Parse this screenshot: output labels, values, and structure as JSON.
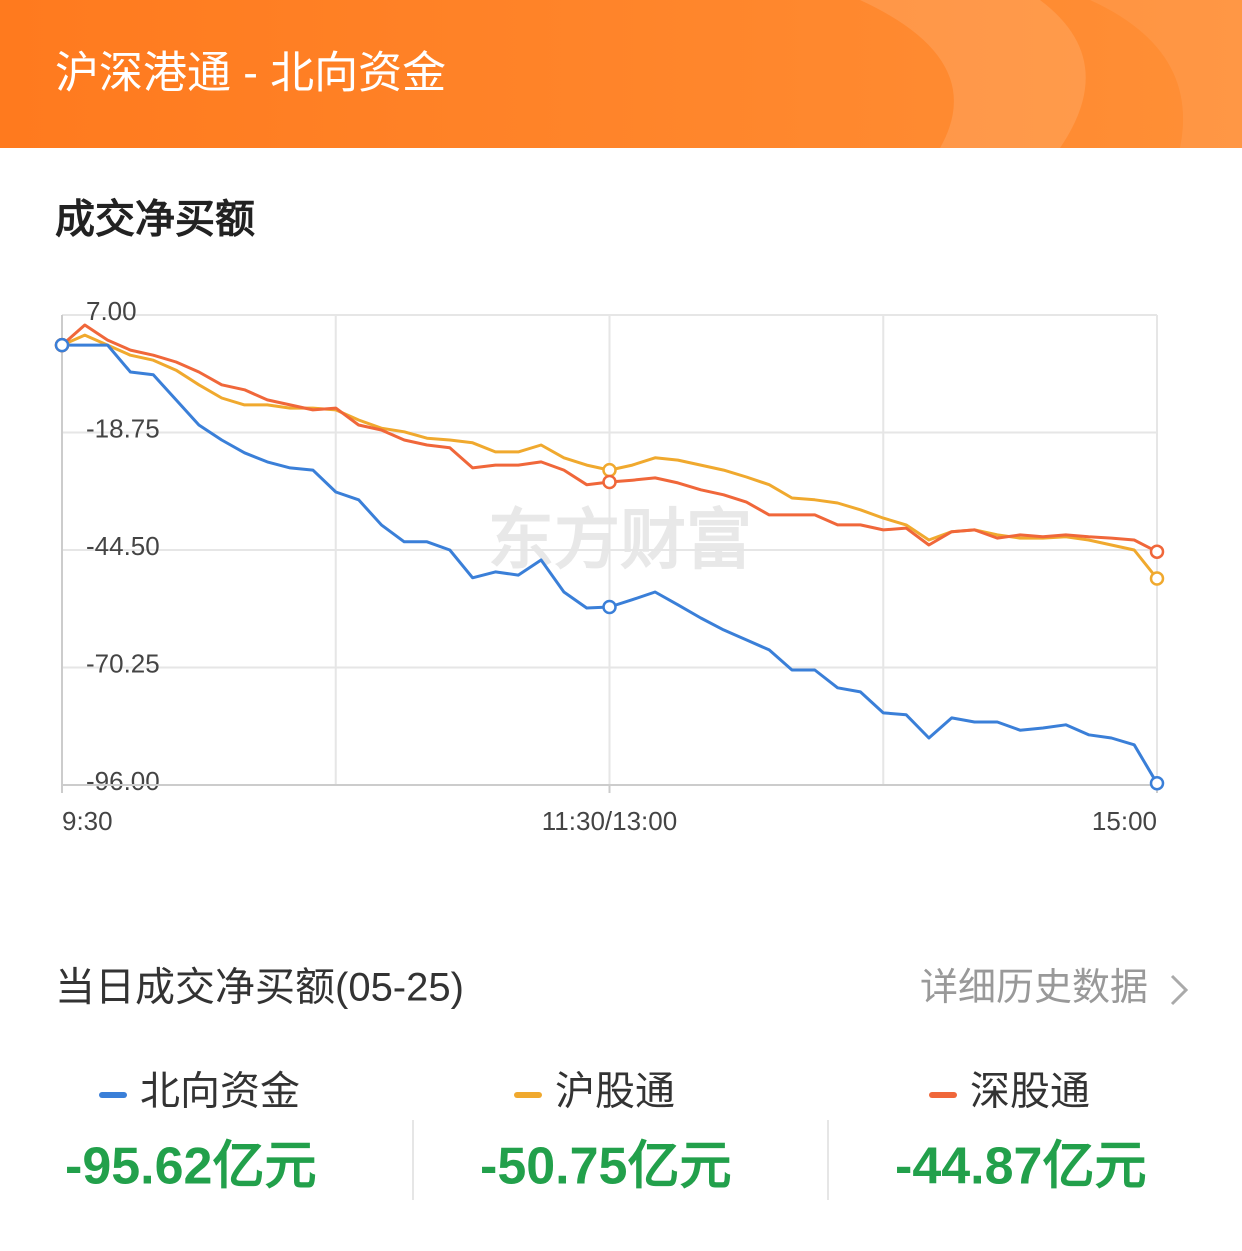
{
  "header": {
    "title": "沪深港通 - 北向资金"
  },
  "section_title": "成交净买额",
  "chart_data": {
    "type": "line",
    "watermark": "东方财富",
    "x": [
      0,
      5,
      10,
      15,
      20,
      25,
      30,
      35,
      40,
      45,
      50,
      55,
      60,
      65,
      70,
      75,
      80,
      85,
      90,
      95,
      100,
      105,
      110,
      115,
      120,
      125,
      130,
      135,
      140,
      145,
      150,
      155,
      160,
      165,
      170,
      175,
      180,
      185,
      190,
      195,
      200,
      205,
      210,
      215,
      220,
      225,
      230,
      235,
      240
    ],
    "xlim": [
      0,
      240
    ],
    "xticks": [
      {
        "value": 0,
        "label": "9:30"
      },
      {
        "value": 120,
        "label": "11:30/13:00"
      },
      {
        "value": 240,
        "label": "15:00"
      }
    ],
    "x_gridlines": [
      0,
      60,
      120,
      180,
      240
    ],
    "ylim": [
      -96,
      7
    ],
    "yticks": [
      {
        "value": 7,
        "label": "7.00"
      },
      {
        "value": -18.75,
        "label": "-18.75"
      },
      {
        "value": -44.5,
        "label": "-44.50"
      },
      {
        "value": -70.25,
        "label": "-70.25"
      },
      {
        "value": -96,
        "label": "-96.00"
      }
    ],
    "grid": true,
    "marker_x": [
      0,
      120,
      240
    ],
    "series": [
      {
        "name": "北向资金",
        "color": "#3a7fd8",
        "values": [
          0.4,
          0.4,
          0.4,
          -5.5,
          -6.1,
          -11.6,
          -17.1,
          -20.4,
          -23.2,
          -25.2,
          -26.5,
          -27.0,
          -31.8,
          -33.5,
          -39.0,
          -42.7,
          -42.7,
          -44.5,
          -50.6,
          -49.3,
          -50.0,
          -46.7,
          -53.7,
          -57.2,
          -57.0,
          -55.4,
          -53.7,
          -56.5,
          -59.4,
          -62.0,
          -64.2,
          -66.4,
          -70.8,
          -70.8,
          -74.7,
          -75.6,
          -80.2,
          -80.6,
          -85.7,
          -81.3,
          -82.2,
          -82.2,
          -84.0,
          -83.5,
          -82.8,
          -85.0,
          -85.7,
          -87.2,
          -95.62
        ]
      },
      {
        "name": "沪股通",
        "color": "#f0a92e",
        "values": [
          0.4,
          2.6,
          0.4,
          -1.8,
          -2.9,
          -5.1,
          -8.3,
          -11.2,
          -12.7,
          -12.7,
          -13.4,
          -13.4,
          -13.8,
          -16.0,
          -17.8,
          -18.6,
          -20.0,
          -20.4,
          -21.0,
          -23.0,
          -23.0,
          -21.5,
          -24.3,
          -25.9,
          -27.0,
          -25.9,
          -24.3,
          -24.8,
          -25.9,
          -27.0,
          -28.5,
          -30.2,
          -33.1,
          -33.5,
          -34.2,
          -35.7,
          -37.5,
          -39.0,
          -42.3,
          -40.5,
          -40.1,
          -41.2,
          -41.9,
          -41.9,
          -41.6,
          -42.3,
          -43.4,
          -44.5,
          -50.75
        ]
      },
      {
        "name": "深股通",
        "color": "#f0673a",
        "values": [
          0.4,
          4.8,
          1.5,
          -0.7,
          -1.8,
          -3.3,
          -5.5,
          -8.3,
          -9.4,
          -11.6,
          -12.7,
          -13.8,
          -13.4,
          -17.1,
          -18.2,
          -20.4,
          -21.5,
          -22.1,
          -26.5,
          -25.9,
          -25.9,
          -25.2,
          -27.0,
          -30.2,
          -29.6,
          -29.2,
          -28.7,
          -29.8,
          -31.3,
          -32.4,
          -34.0,
          -36.8,
          -36.8,
          -36.8,
          -39.0,
          -39.0,
          -40.1,
          -39.7,
          -43.4,
          -40.5,
          -40.1,
          -41.9,
          -41.2,
          -41.6,
          -41.2,
          -41.6,
          -41.9,
          -42.3,
          -44.87
        ]
      }
    ]
  },
  "summary": {
    "title": "当日成交净买额(05-25)",
    "link": "详细历史数据",
    "items": [
      {
        "name": "北向资金",
        "value": -95.62,
        "label": "-95.62亿元"
      },
      {
        "name": "沪股通",
        "value": -50.75,
        "label": "-50.75亿元"
      },
      {
        "name": "深股通",
        "value": -44.87,
        "label": "-44.87亿元"
      }
    ]
  }
}
